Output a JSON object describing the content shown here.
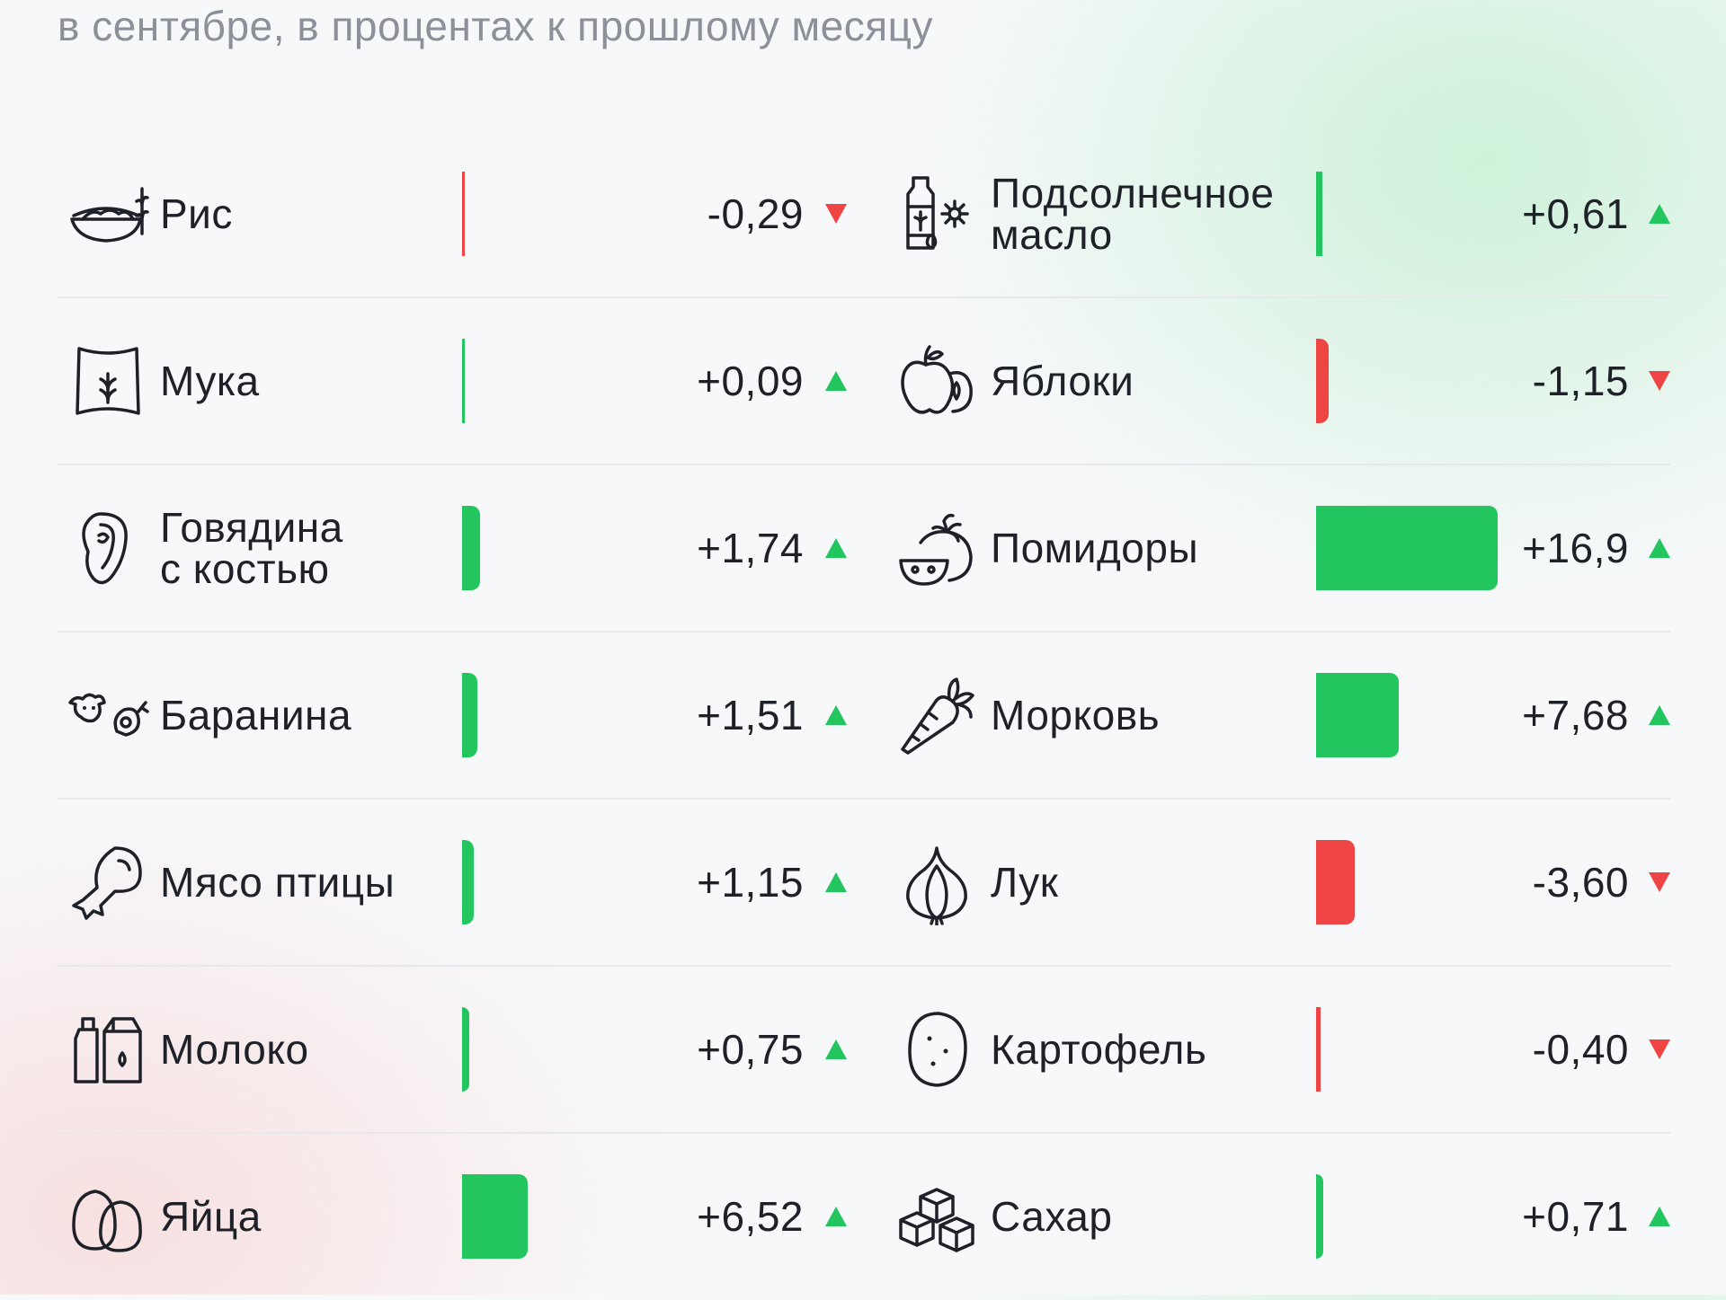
{
  "subtitle": "в сентябре, в процентах к прошлому месяцу",
  "colors": {
    "up": "#22c55e",
    "down": "#ef4444",
    "text": "#1e2128",
    "muted": "#8b9099",
    "divider": "#e6e8ec"
  },
  "chart_data": {
    "type": "bar",
    "title": "",
    "subtitle": "в сентябре, в процентах к прошлому месяцу",
    "columns": [
      {
        "items": [
          {
            "label": "Рис",
            "value": -0.29,
            "value_text": "-0,29",
            "direction": "down",
            "icon": "rice-bowl-icon"
          },
          {
            "label": "Мука",
            "value": 0.09,
            "value_text": "+0,09",
            "direction": "up",
            "icon": "flour-sack-icon"
          },
          {
            "label": "Говядина\nс костью",
            "value": 1.74,
            "value_text": "+1,74",
            "direction": "up",
            "icon": "steak-icon"
          },
          {
            "label": "Баранина",
            "value": 1.51,
            "value_text": "+1,51",
            "direction": "up",
            "icon": "sheep-meat-icon"
          },
          {
            "label": "Мясо птицы",
            "value": 1.15,
            "value_text": "+1,15",
            "direction": "up",
            "icon": "chicken-leg-icon"
          },
          {
            "label": "Молоко",
            "value": 0.75,
            "value_text": "+0,75",
            "direction": "up",
            "icon": "milk-bottles-icon"
          },
          {
            "label": "Яйца",
            "value": 6.52,
            "value_text": "+6,52",
            "direction": "up",
            "icon": "eggs-icon"
          }
        ]
      },
      {
        "items": [
          {
            "label": "Подсолнечное\nмасло",
            "value": 0.61,
            "value_text": "+0,61",
            "direction": "up",
            "icon": "oil-bottle-icon"
          },
          {
            "label": "Яблоки",
            "value": -1.15,
            "value_text": "-1,15",
            "direction": "down",
            "icon": "apples-icon"
          },
          {
            "label": "Помидоры",
            "value": 16.9,
            "value_text": "+16,9",
            "direction": "up",
            "icon": "tomato-icon"
          },
          {
            "label": "Морковь",
            "value": 7.68,
            "value_text": "+7,68",
            "direction": "up",
            "icon": "carrot-icon"
          },
          {
            "label": "Лук",
            "value": -3.6,
            "value_text": "-3,60",
            "direction": "down",
            "icon": "onion-icon"
          },
          {
            "label": "Картофель",
            "value": -0.4,
            "value_text": "-0,40",
            "direction": "down",
            "icon": "potato-icon"
          },
          {
            "label": "Сахар",
            "value": 0.71,
            "value_text": "+0,71",
            "direction": "up",
            "icon": "sugar-cubes-icon"
          }
        ]
      }
    ]
  }
}
